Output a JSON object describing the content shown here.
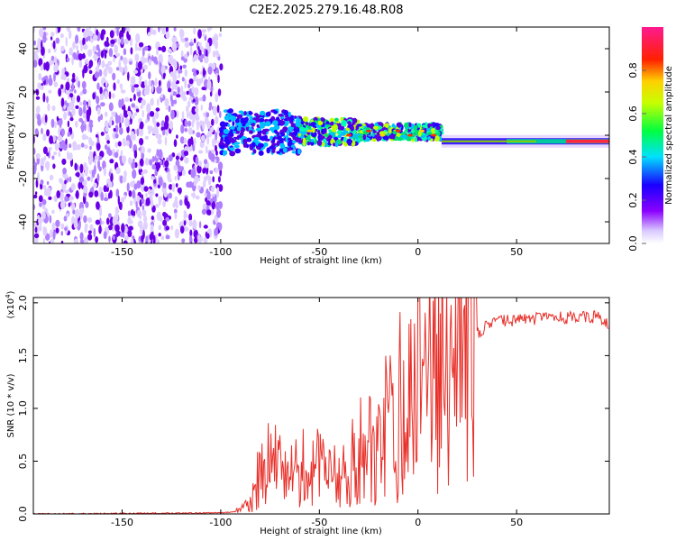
{
  "title": "C2E2.2025.279.16.48.R08",
  "chart_data": [
    {
      "type": "heatmap",
      "name": "spectrogram",
      "xlabel": "Height of straight line (km)",
      "ylabel": "Frequency (Hz)",
      "xlim": [
        -195,
        97
      ],
      "ylim": [
        -50,
        50
      ],
      "x_ticks": [
        -150,
        -100,
        -50,
        0,
        50
      ],
      "y_ticks": [
        -40,
        -20,
        0,
        20,
        40
      ],
      "description_regions": [
        {
          "x_range": [
            -195,
            -100
          ],
          "freq_range": [
            -50,
            50
          ],
          "amplitude": 0.15,
          "pattern": "noise"
        },
        {
          "x_range": [
            -100,
            12
          ],
          "freq_range": [
            -8,
            13
          ],
          "amplitude": 0.4,
          "pattern": "broadened signal"
        },
        {
          "x_range": [
            12,
            97
          ],
          "freq_range": [
            -4,
            -2
          ],
          "amplitude": 0.9,
          "pattern": "narrow line"
        }
      ],
      "colorbar": {
        "label": "Normalized spectral amplitude",
        "range": [
          0.0,
          1.0
        ],
        "ticks": [
          "0.0",
          "0.2",
          "0.4",
          "0.6",
          "0.8"
        ],
        "colors": [
          "#ffffff",
          "#7f00ff",
          "#0000ff",
          "#00ffff",
          "#00ff00",
          "#ffff00",
          "#ff0000",
          "#ff00aa"
        ]
      }
    },
    {
      "type": "line",
      "name": "snr",
      "xlabel": "Height of straight line (km)",
      "ylabel": "SNR (10 * v/v)",
      "y_multiplier": "(x10",
      "y_multiplier_exp": "4",
      "y_multiplier_close": ")",
      "xlim": [
        -195,
        97
      ],
      "ylim": [
        0,
        2.05
      ],
      "x_ticks": [
        -150,
        -100,
        -50,
        0,
        50
      ],
      "y_ticks": [
        "0.0",
        "0.5",
        "1.0",
        "1.5",
        "2.0"
      ],
      "color": "#e8302a",
      "series": [
        {
          "name": "SNR",
          "x": [
            -195,
            -100,
            -90,
            -85,
            -80,
            -75,
            -70,
            -65,
            -60,
            -55,
            -50,
            -45,
            -40,
            -35,
            -30,
            -25,
            -20,
            -15,
            -10,
            -5,
            0,
            5,
            10,
            15,
            20,
            25,
            30,
            35,
            40,
            50,
            60,
            70,
            80,
            90,
            97
          ],
          "values": [
            0.0,
            0.01,
            0.03,
            0.1,
            0.35,
            0.55,
            0.4,
            0.3,
            0.3,
            0.35,
            0.4,
            0.4,
            0.3,
            0.45,
            0.6,
            0.6,
            0.7,
            0.9,
            1.05,
            1.05,
            1.15,
            1.2,
            1.25,
            1.3,
            1.45,
            1.6,
            1.7,
            1.78,
            1.82,
            1.84,
            1.85,
            1.86,
            1.86,
            1.87,
            1.8
          ]
        }
      ]
    }
  ]
}
